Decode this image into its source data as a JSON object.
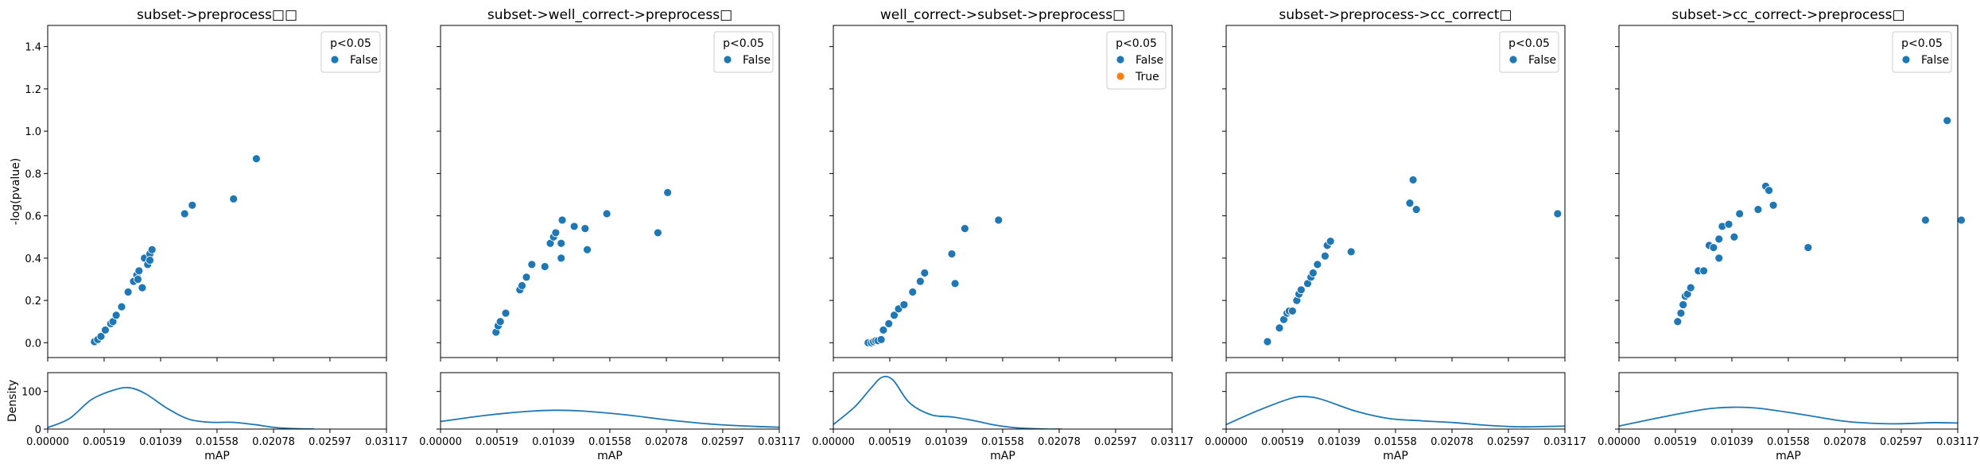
{
  "figure": {
    "shared": {
      "xlabel": "mAP",
      "scatter_ylabel": "-log(pvalue)",
      "density_ylabel": "Density",
      "legend_title": "p<0.05",
      "x_ticks": [
        0.0,
        0.00519,
        0.01039,
        0.01558,
        0.02078,
        0.02597,
        0.03117
      ],
      "x_tick_labels": [
        "0.00000",
        "0.00519",
        "0.01039",
        "0.01558",
        "0.02078",
        "0.02597",
        "0.03117"
      ],
      "xlim": [
        0.0,
        0.03117
      ],
      "scatter_ylim": [
        -0.07,
        1.5
      ],
      "scatter_y_ticks": [
        0.0,
        0.2,
        0.4,
        0.6,
        0.8,
        1.0,
        1.2,
        1.4
      ],
      "scatter_y_tick_labels": [
        "0.0",
        "0.2",
        "0.4",
        "0.6",
        "0.8",
        "1.0",
        "1.2",
        "1.4"
      ],
      "density_ylim": [
        0,
        150
      ],
      "density_y_ticks": [
        0,
        100
      ],
      "density_y_tick_labels": [
        "0",
        "100"
      ],
      "colors": {
        "False": "#1f77b4",
        "True": "#ff7f0e",
        "kde": "#1f77b4"
      }
    }
  },
  "chart_data": [
    {
      "type": "scatter",
      "title": "subset->preprocess□□",
      "legend": {
        "title": "p<0.05",
        "entries": [
          "False"
        ],
        "placement": "top-right"
      },
      "series": [
        {
          "name": "False",
          "points": [
            [
              0.0043,
              0.005
            ],
            [
              0.0046,
              0.015
            ],
            [
              0.0049,
              0.03
            ],
            [
              0.0053,
              0.06
            ],
            [
              0.0058,
              0.09
            ],
            [
              0.006,
              0.1
            ],
            [
              0.0063,
              0.13
            ],
            [
              0.0068,
              0.17
            ],
            [
              0.0074,
              0.24
            ],
            [
              0.0079,
              0.29
            ],
            [
              0.0082,
              0.32
            ],
            [
              0.0084,
              0.34
            ],
            [
              0.0083,
              0.3
            ],
            [
              0.0087,
              0.26
            ],
            [
              0.0089,
              0.4
            ],
            [
              0.0092,
              0.37
            ],
            [
              0.0094,
              0.42
            ],
            [
              0.0096,
              0.44
            ],
            [
              0.0094,
              0.39
            ],
            [
              0.0126,
              0.61
            ],
            [
              0.0133,
              0.65
            ],
            [
              0.0171,
              0.68
            ],
            [
              0.0192,
              0.87
            ]
          ]
        }
      ],
      "density": {
        "type": "kde",
        "x": [
          0.0,
          0.002,
          0.004,
          0.006,
          0.0075,
          0.009,
          0.011,
          0.013,
          0.015,
          0.017,
          0.019,
          0.021,
          0.023,
          0.0245
        ],
        "y": [
          4,
          28,
          78,
          103,
          110,
          94,
          55,
          26,
          18,
          18,
          12,
          4,
          1,
          0
        ]
      }
    },
    {
      "type": "scatter",
      "title": "subset->well_correct->preprocess□",
      "legend": {
        "title": "p<0.05",
        "entries": [
          "False"
        ],
        "placement": "top-right"
      },
      "series": [
        {
          "name": "False",
          "points": [
            [
              0.0051,
              0.05
            ],
            [
              0.0053,
              0.08
            ],
            [
              0.0055,
              0.1
            ],
            [
              0.006,
              0.14
            ],
            [
              0.0073,
              0.25
            ],
            [
              0.0075,
              0.27
            ],
            [
              0.0079,
              0.31
            ],
            [
              0.0084,
              0.37
            ],
            [
              0.0096,
              0.36
            ],
            [
              0.0101,
              0.47
            ],
            [
              0.0104,
              0.5
            ],
            [
              0.0106,
              0.52
            ],
            [
              0.0111,
              0.47
            ],
            [
              0.0112,
              0.58
            ],
            [
              0.0111,
              0.4
            ],
            [
              0.0123,
              0.55
            ],
            [
              0.0133,
              0.54
            ],
            [
              0.0135,
              0.44
            ],
            [
              0.0153,
              0.61
            ],
            [
              0.02,
              0.52
            ],
            [
              0.0209,
              0.71
            ]
          ]
        }
      ],
      "density": {
        "type": "kde",
        "x": [
          0.0,
          0.004,
          0.008,
          0.0105,
          0.013,
          0.017,
          0.021,
          0.025,
          0.029,
          0.0312
        ],
        "y": [
          20,
          36,
          47,
          50,
          48,
          38,
          24,
          13,
          7,
          5
        ]
      }
    },
    {
      "type": "scatter",
      "title": "well_correct->subset->preprocess□",
      "legend": {
        "title": "p<0.05",
        "entries": [
          "False",
          "True"
        ],
        "placement": "top-right"
      },
      "series": [
        {
          "name": "False",
          "points": [
            [
              0.0032,
              0.0
            ],
            [
              0.0035,
              0.0
            ],
            [
              0.0037,
              0.005
            ],
            [
              0.0039,
              0.01
            ],
            [
              0.0041,
              0.01
            ],
            [
              0.0044,
              0.015
            ],
            [
              0.0046,
              0.06
            ],
            [
              0.0051,
              0.09
            ],
            [
              0.0056,
              0.13
            ],
            [
              0.006,
              0.16
            ],
            [
              0.0065,
              0.18
            ],
            [
              0.0073,
              0.24
            ],
            [
              0.008,
              0.29
            ],
            [
              0.0084,
              0.33
            ],
            [
              0.0109,
              0.42
            ],
            [
              0.0112,
              0.28
            ],
            [
              0.0121,
              0.54
            ],
            [
              0.0152,
              0.58
            ]
          ]
        },
        {
          "name": "True",
          "points": []
        }
      ],
      "density": {
        "type": "kde",
        "x": [
          0.0,
          0.002,
          0.0035,
          0.0045,
          0.0055,
          0.007,
          0.009,
          0.011,
          0.013,
          0.015,
          0.017,
          0.0195,
          0.021
        ],
        "y": [
          12,
          60,
          110,
          138,
          130,
          70,
          38,
          32,
          22,
          10,
          3,
          0,
          0
        ]
      }
    },
    {
      "type": "scatter",
      "title": "subset->preprocess->cc_correct□",
      "legend": {
        "title": "p<0.05",
        "entries": [
          "False"
        ],
        "placement": "top-right"
      },
      "series": [
        {
          "name": "False",
          "points": [
            [
              0.0038,
              0.005
            ],
            [
              0.0049,
              0.07
            ],
            [
              0.0053,
              0.11
            ],
            [
              0.0056,
              0.14
            ],
            [
              0.0058,
              0.15
            ],
            [
              0.0061,
              0.15
            ],
            [
              0.0065,
              0.2
            ],
            [
              0.0067,
              0.23
            ],
            [
              0.0069,
              0.25
            ],
            [
              0.0075,
              0.28
            ],
            [
              0.0078,
              0.31
            ],
            [
              0.008,
              0.33
            ],
            [
              0.0084,
              0.37
            ],
            [
              0.0091,
              0.41
            ],
            [
              0.0093,
              0.46
            ],
            [
              0.0096,
              0.48
            ],
            [
              0.0115,
              0.43
            ],
            [
              0.0172,
              0.77
            ],
            [
              0.0169,
              0.66
            ],
            [
              0.0175,
              0.63
            ],
            [
              0.0305,
              0.61
            ]
          ]
        }
      ],
      "density": {
        "type": "kde",
        "x": [
          0.0,
          0.003,
          0.006,
          0.0075,
          0.009,
          0.012,
          0.015,
          0.018,
          0.021,
          0.024,
          0.027,
          0.0312
        ],
        "y": [
          12,
          50,
          82,
          86,
          77,
          47,
          28,
          22,
          17,
          10,
          6,
          8
        ]
      }
    },
    {
      "type": "scatter",
      "title": "subset->cc_correct->preprocess□",
      "legend": {
        "title": "p<0.05",
        "entries": [
          "False"
        ],
        "placement": "top-right"
      },
      "series": [
        {
          "name": "False",
          "points": [
            [
              0.0054,
              0.1
            ],
            [
              0.0057,
              0.14
            ],
            [
              0.0059,
              0.18
            ],
            [
              0.0061,
              0.22
            ],
            [
              0.0063,
              0.23
            ],
            [
              0.0066,
              0.26
            ],
            [
              0.0073,
              0.34
            ],
            [
              0.0078,
              0.34
            ],
            [
              0.0083,
              0.46
            ],
            [
              0.0087,
              0.45
            ],
            [
              0.0092,
              0.49
            ],
            [
              0.0092,
              0.4
            ],
            [
              0.0095,
              0.55
            ],
            [
              0.0101,
              0.56
            ],
            [
              0.0106,
              0.5
            ],
            [
              0.0111,
              0.61
            ],
            [
              0.0128,
              0.63
            ],
            [
              0.0135,
              0.74
            ],
            [
              0.0138,
              0.72
            ],
            [
              0.0142,
              0.65
            ],
            [
              0.0174,
              0.45
            ],
            [
              0.0282,
              0.58
            ],
            [
              0.0302,
              1.05
            ],
            [
              0.0315,
              0.58
            ]
          ]
        }
      ],
      "density": {
        "type": "kde",
        "x": [
          0.0,
          0.004,
          0.008,
          0.0105,
          0.013,
          0.017,
          0.021,
          0.025,
          0.029,
          0.0312
        ],
        "y": [
          8,
          32,
          53,
          58,
          55,
          38,
          20,
          14,
          17,
          16
        ]
      }
    }
  ]
}
